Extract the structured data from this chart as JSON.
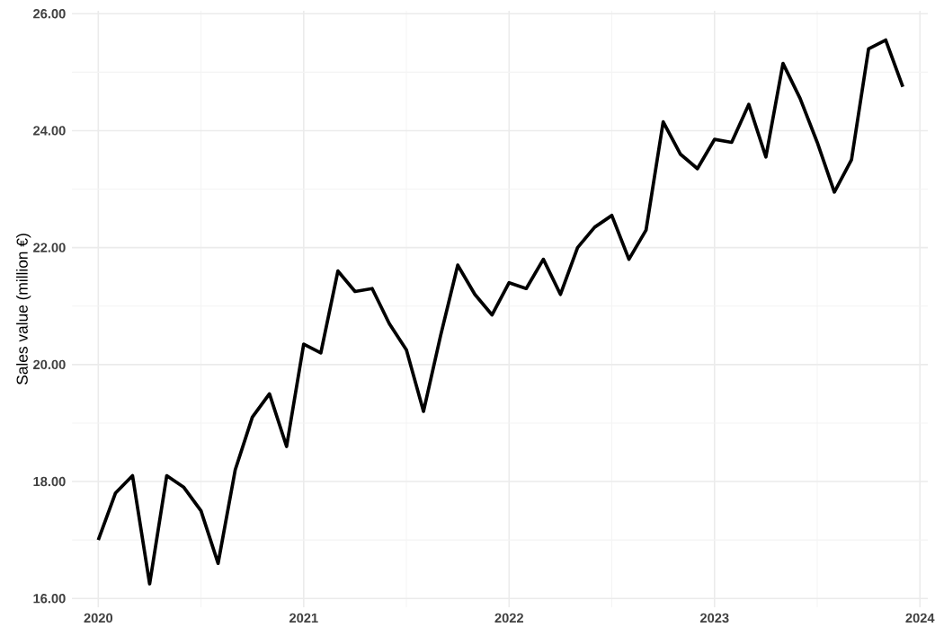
{
  "chart_data": {
    "type": "line",
    "ylabel": "Sales value (million €)",
    "x": [
      "2020-01",
      "2020-02",
      "2020-03",
      "2020-04",
      "2020-05",
      "2020-06",
      "2020-07",
      "2020-08",
      "2020-09",
      "2020-10",
      "2020-11",
      "2020-12",
      "2021-01",
      "2021-02",
      "2021-03",
      "2021-04",
      "2021-05",
      "2021-06",
      "2021-07",
      "2021-08",
      "2021-09",
      "2021-10",
      "2021-11",
      "2021-12",
      "2022-01",
      "2022-02",
      "2022-03",
      "2022-04",
      "2022-05",
      "2022-06",
      "2022-07",
      "2022-08",
      "2022-09",
      "2022-10",
      "2022-11",
      "2022-12",
      "2023-01",
      "2023-02",
      "2023-03",
      "2023-04",
      "2023-05",
      "2023-06",
      "2023-07",
      "2023-08",
      "2023-09",
      "2023-10",
      "2023-11",
      "2023-12"
    ],
    "series": [
      {
        "color": "#000000",
        "values": [
          17.0,
          17.8,
          18.1,
          16.25,
          18.1,
          17.9,
          17.5,
          16.6,
          18.2,
          19.1,
          19.5,
          18.6,
          20.35,
          20.2,
          21.6,
          21.25,
          21.3,
          20.7,
          20.25,
          19.2,
          20.5,
          21.7,
          21.2,
          20.85,
          21.4,
          21.3,
          21.8,
          21.2,
          22.0,
          22.35,
          22.55,
          21.8,
          22.3,
          24.15,
          23.6,
          23.35,
          23.85,
          23.8,
          24.45,
          23.55,
          25.15,
          24.55,
          23.8,
          22.95,
          23.5,
          25.4,
          25.55,
          24.75
        ]
      }
    ],
    "xlim": [
      "2019-11-15",
      "2024-01-15"
    ],
    "xticks": [
      "2020",
      "2021",
      "2022",
      "2023",
      "2024"
    ],
    "ylim": [
      15.85,
      26.05
    ],
    "yticks": [
      {
        "value": 16,
        "label": "16.00"
      },
      {
        "value": 18,
        "label": "18.00"
      },
      {
        "value": 20,
        "label": "20.00"
      },
      {
        "value": 22,
        "label": "22.00"
      },
      {
        "value": 24,
        "label": "24.00"
      },
      {
        "value": 26,
        "label": "26.00"
      }
    ],
    "grid": true,
    "marker": "none",
    "line_style": "solid"
  }
}
